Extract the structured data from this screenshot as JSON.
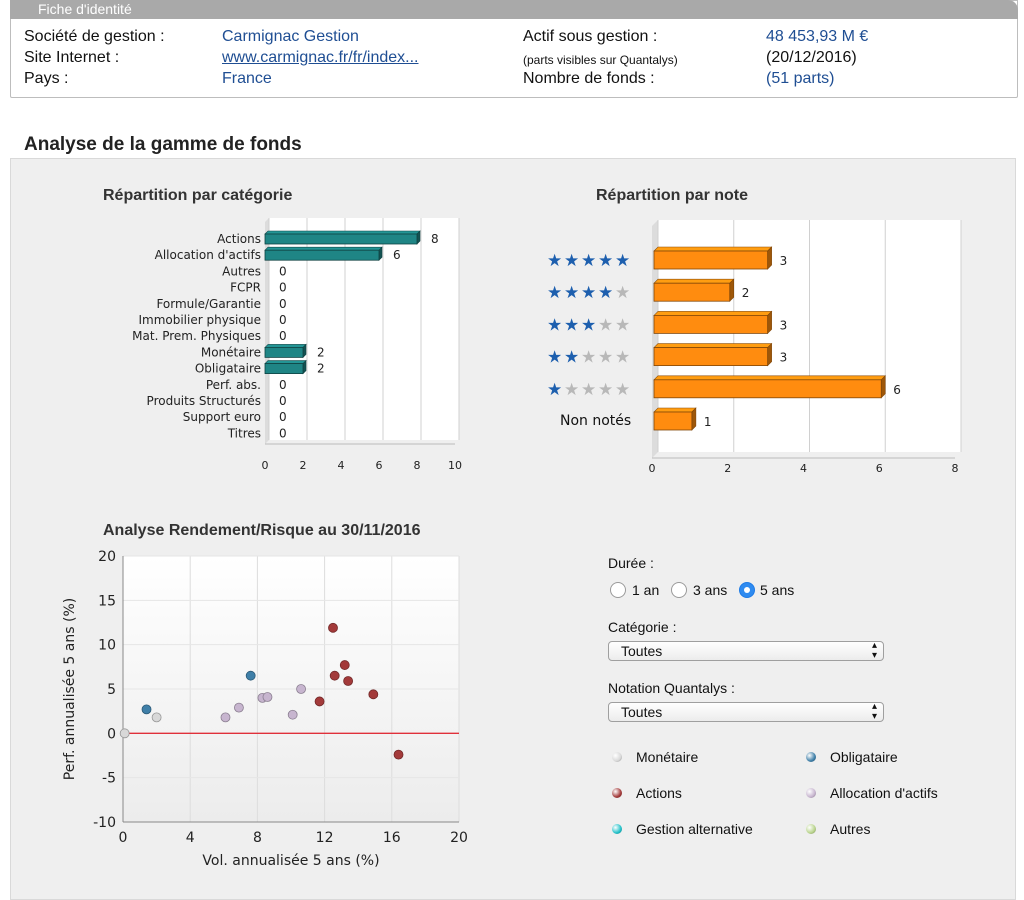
{
  "identity": {
    "header": "Fiche d'identité",
    "societe_label": "Société de gestion :",
    "societe_value": "Carmignac Gestion",
    "site_label": "Site Internet :",
    "site_value": "www.carmignac.fr/fr/index...",
    "pays_label": "Pays :",
    "pays_value": "France",
    "actif_label": "Actif sous gestion :",
    "actif_value": "48 453,93 M €",
    "parts_note": "(parts visibles sur Quantalys)",
    "actif_date": "(20/12/2016)",
    "nb_fonds_label": "Nombre de fonds :",
    "nb_fonds_value": "(51 parts)"
  },
  "section_title": "Analyse de la gamme de fonds",
  "cat_chart_title": "Répartition par catégorie",
  "note_chart_title": "Répartition par note",
  "scatter_title": "Analyse Rendement/Risque au 30/11/2016",
  "controls": {
    "duree_label": "Durée :",
    "duree_options": [
      "1 an",
      "3 ans",
      "5 ans"
    ],
    "duree_selected": "5 ans",
    "categorie_label": "Catégorie :",
    "categorie_value": "Toutes",
    "notation_label": "Notation Quantalys :",
    "notation_value": "Toutes"
  },
  "legend": [
    {
      "label": "Monétaire",
      "color": "#d8d8d8"
    },
    {
      "label": "Obligataire",
      "color": "#3f7fa8"
    },
    {
      "label": "Actions",
      "color": "#a33a3a"
    },
    {
      "label": "Allocation d'actifs",
      "color": "#c7b5cf"
    },
    {
      "label": "Gestion alternative",
      "color": "#22c1c9"
    },
    {
      "label": "Autres",
      "color": "#b9d48c"
    }
  ],
  "chart_data": [
    {
      "type": "bar",
      "orientation": "horizontal",
      "title": "Répartition par catégorie",
      "categories": [
        "Actions",
        "Allocation d'actifs",
        "Autres",
        "FCPR",
        "Formule/Garantie",
        "Immobilier physique",
        "Mat. Prem. Physiques",
        "Monétaire",
        "Obligataire",
        "Perf. abs.",
        "Produits Structurés",
        "Support euro",
        "Titres"
      ],
      "values": [
        8,
        6,
        0,
        0,
        0,
        0,
        0,
        2,
        2,
        0,
        0,
        0,
        0
      ],
      "xlim": [
        0,
        10
      ],
      "xticks": [
        "0",
        "2",
        "4",
        "6",
        "8",
        "10"
      ],
      "color": "#1f8585",
      "grid": true
    },
    {
      "type": "bar",
      "orientation": "horizontal",
      "title": "Répartition par note",
      "categories": [
        "5 étoiles",
        "4 étoiles",
        "3 étoiles",
        "2 étoiles",
        "1 étoile",
        "Non notés"
      ],
      "stars": [
        5,
        4,
        3,
        2,
        1,
        0
      ],
      "non_note_label": "Non notés",
      "values": [
        3,
        2,
        3,
        3,
        6,
        1
      ],
      "xlim": [
        0,
        8
      ],
      "xticks": [
        "0",
        "2",
        "4",
        "6",
        "8"
      ],
      "color": "#ff8c0f",
      "grid": true
    },
    {
      "type": "scatter",
      "title": "Analyse Rendement/Risque au 30/11/2016",
      "xlabel": "Vol. annualisée 5 ans (%)",
      "ylabel": "Perf. annualisée 5 ans (%)",
      "xlim": [
        0,
        20
      ],
      "ylim": [
        -10,
        20
      ],
      "xticks": [
        "0",
        "4",
        "8",
        "12",
        "16",
        "20"
      ],
      "yticks": [
        "20",
        "15",
        "10",
        "5",
        "0",
        "-5",
        "-10"
      ],
      "series": [
        {
          "name": "Monétaire",
          "color": "#d8d8d8",
          "points": [
            [
              0.1,
              0.0
            ],
            [
              2.0,
              1.8
            ]
          ]
        },
        {
          "name": "Obligataire",
          "color": "#3f7fa8",
          "points": [
            [
              1.4,
              2.7
            ],
            [
              7.6,
              6.5
            ]
          ]
        },
        {
          "name": "Actions",
          "color": "#a33a3a",
          "points": [
            [
              11.7,
              3.6
            ],
            [
              12.5,
              11.9
            ],
            [
              12.6,
              6.5
            ],
            [
              13.2,
              7.7
            ],
            [
              13.4,
              5.9
            ],
            [
              14.9,
              4.4
            ],
            [
              16.4,
              -2.4
            ]
          ]
        },
        {
          "name": "Allocation d'actifs",
          "color": "#c7b5cf",
          "points": [
            [
              6.1,
              1.8
            ],
            [
              6.9,
              2.9
            ],
            [
              8.3,
              4.0
            ],
            [
              8.6,
              4.1
            ],
            [
              10.1,
              2.1
            ],
            [
              10.6,
              5.0
            ]
          ]
        }
      ],
      "reference_line_y": 0,
      "reference_line_color": "#e0303a",
      "grid": true
    }
  ]
}
